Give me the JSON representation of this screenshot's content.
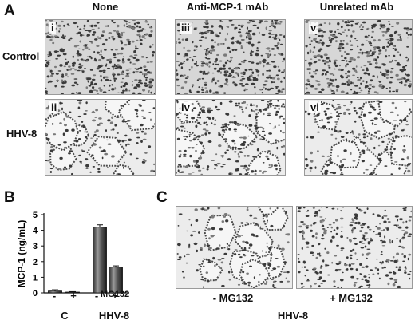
{
  "panel_a": {
    "letter": "A",
    "columns": [
      "None",
      "Anti-MCP-1 mAb",
      "Unrelated mAb"
    ],
    "rows": [
      "Control",
      "HHV-8"
    ],
    "subpanels": [
      "i",
      "iii",
      "v",
      "ii",
      "iv",
      "vi"
    ]
  },
  "panel_b": {
    "letter": "B",
    "treatment_label": "MG132",
    "group_labels": [
      "C",
      "HHV-8"
    ],
    "signs": [
      "-",
      "+",
      "-",
      "+"
    ]
  },
  "panel_c": {
    "letter": "C",
    "image_labels": [
      "- MG132",
      "+ MG132"
    ],
    "group_label": "HHV-8"
  },
  "chart_data": {
    "type": "bar",
    "title": "",
    "xlabel": "",
    "ylabel": "MCP-1 (ng/mL)",
    "ylim": [
      0,
      5
    ],
    "yticks": [
      0,
      1,
      2,
      3,
      4,
      5
    ],
    "categories": [
      "C -MG132",
      "C +MG132",
      "HHV-8 -MG132",
      "HHV-8 +MG132"
    ],
    "values": [
      0.12,
      0.05,
      4.2,
      1.65
    ],
    "errors": [
      0.08,
      0.03,
      0.15,
      0.08
    ]
  }
}
